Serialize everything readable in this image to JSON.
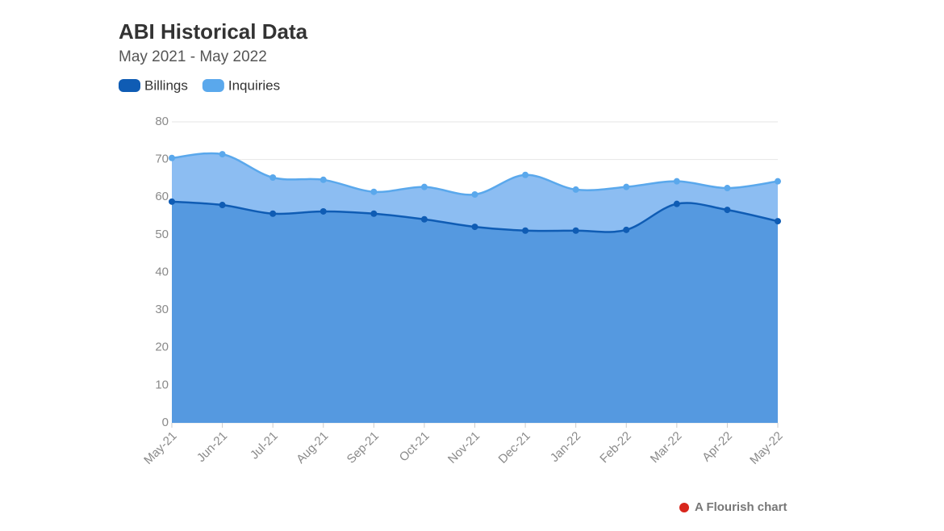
{
  "chart_data": {
    "type": "area",
    "title": "ABI Historical Data",
    "subtitle": "May 2021 - May 2022",
    "categories": [
      "May-21",
      "Jun-21",
      "Jul-21",
      "Aug-21",
      "Sep-21",
      "Oct-21",
      "Nov-21",
      "Dec-21",
      "Jan-22",
      "Feb-22",
      "Mar-22",
      "Apr-22",
      "May-22"
    ],
    "series": [
      {
        "name": "Billings",
        "color": "#0f5cb4",
        "values": [
          58.8,
          57.9,
          55.6,
          56.2,
          55.6,
          54.1,
          52.1,
          51.1,
          51.1,
          51.3,
          58.2,
          56.6,
          53.6
        ]
      },
      {
        "name": "Inquiries",
        "color": "#5aa8ec",
        "values": [
          70.4,
          71.4,
          65.2,
          64.6,
          61.4,
          62.7,
          60.7,
          65.9,
          62.0,
          62.7,
          64.2,
          62.4,
          64.2
        ]
      }
    ],
    "ylim": [
      0,
      80
    ],
    "yticks": [
      0,
      10,
      20,
      30,
      40,
      50,
      60,
      70,
      80
    ],
    "grid": true,
    "footer": "A Flourish chart"
  }
}
